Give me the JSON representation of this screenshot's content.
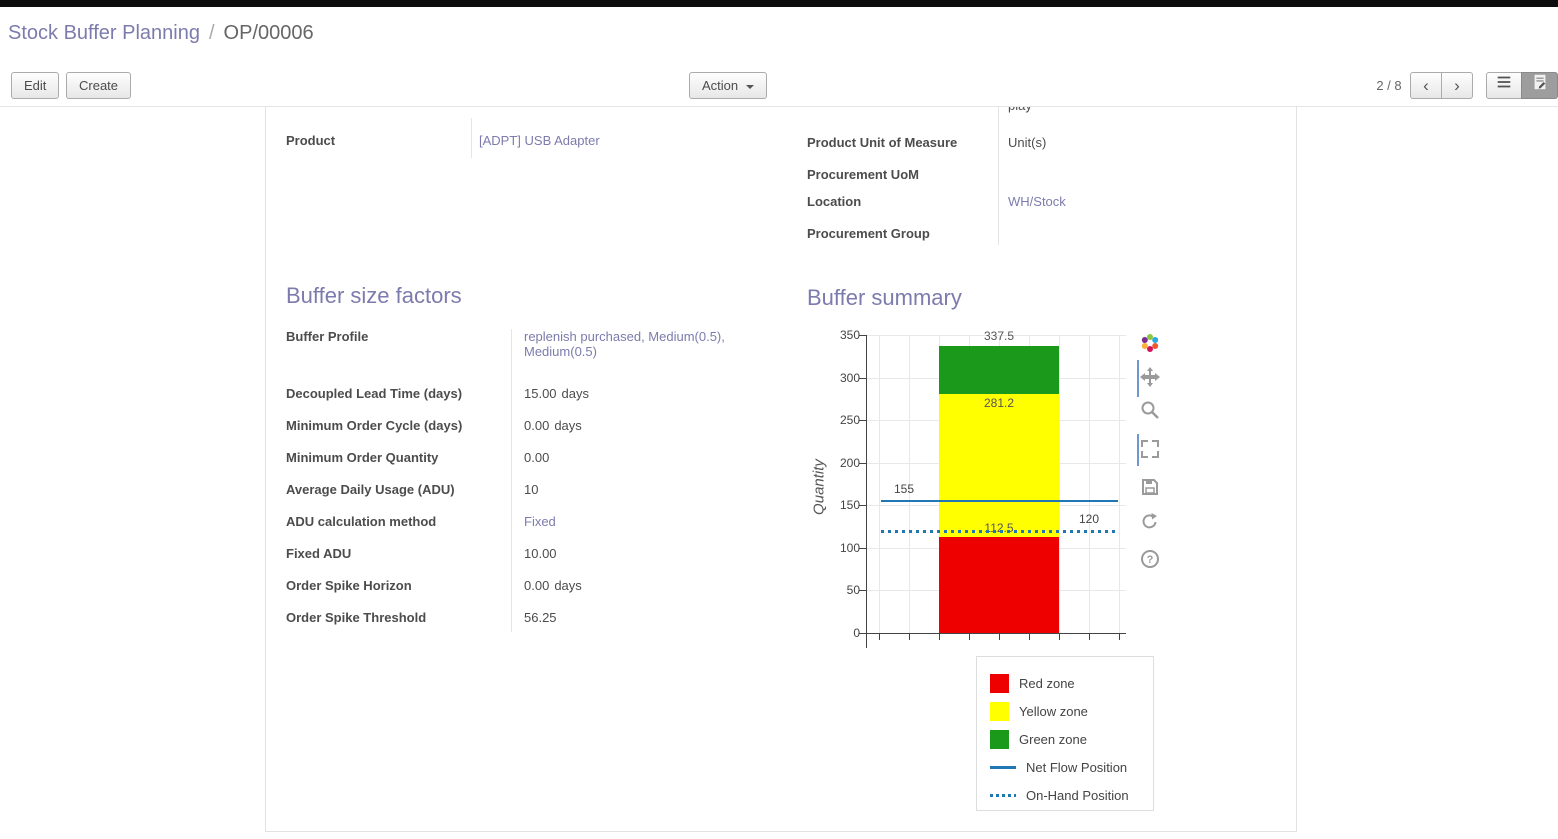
{
  "window": {
    "title_primary": "Stock Buffer Planning",
    "separator": "/",
    "title_secondary": "OP/00006"
  },
  "toolbar": {
    "edit_label": "Edit",
    "create_label": "Create",
    "action_label": "Action",
    "pager": "2 / 8",
    "prev_glyph": "‹",
    "next_glyph": "›"
  },
  "icons": {
    "view_switcher": [
      "list-view",
      "form-view"
    ],
    "modebar": [
      "plotly-logo",
      "pan",
      "zoom",
      "autoscale",
      "save",
      "reset-axes",
      "help"
    ]
  },
  "form": {
    "left": {
      "product_label": "Product",
      "product_value": "[ADPT] USB Adapter"
    },
    "right": {
      "clipped_value": "play",
      "rows": [
        {
          "label": "Product Unit of Measure",
          "value": "Unit(s)"
        },
        {
          "label": "Procurement UoM",
          "value": ""
        },
        {
          "label": "Location",
          "value": "WH/Stock"
        },
        {
          "label": "Procurement Group",
          "value": ""
        }
      ]
    },
    "factors": {
      "title": "Buffer size factors",
      "rows": [
        {
          "label": "Buffer Profile",
          "value": "replenish purchased, Medium(0.5), Medium(0.5)"
        },
        {
          "label": "Decoupled Lead Time (days)",
          "value": "15.00",
          "unit": "days"
        },
        {
          "label": "Minimum Order Cycle (days)",
          "value": "0.00",
          "unit": "days"
        },
        {
          "label": "Minimum Order Quantity",
          "value": "0.00"
        },
        {
          "label": "Average Daily Usage (ADU)",
          "value": "10"
        },
        {
          "label": "ADU calculation method",
          "value": "Fixed"
        },
        {
          "label": "Fixed ADU",
          "value": "10.00"
        },
        {
          "label": "Order Spike Horizon",
          "value": "0.00",
          "unit": "days"
        },
        {
          "label": "Order Spike Threshold",
          "value": "56.25"
        }
      ]
    },
    "summary_title": "Buffer summary"
  },
  "chart_data": {
    "type": "bar",
    "title": "Buffer summary",
    "ylabel": "Quantity",
    "ylim": [
      0,
      350
    ],
    "yticks": [
      0,
      50,
      100,
      150,
      200,
      250,
      300,
      350
    ],
    "x_gridline_count": 9,
    "zones": [
      {
        "name": "Red zone",
        "from": 0,
        "to": 112.5,
        "color": "#ee0000"
      },
      {
        "name": "Yellow zone",
        "from": 112.5,
        "to": 281.2,
        "color": "#ffff00"
      },
      {
        "name": "Green zone",
        "from": 281.2,
        "to": 337.5,
        "color": "#1a991a"
      }
    ],
    "bar_labels": [
      {
        "text": "337.5",
        "value": 337.5
      },
      {
        "text": "281.2",
        "value": 281.2
      },
      {
        "text": "112.5",
        "value": 112.5
      }
    ],
    "lines": [
      {
        "name": "Net Flow Position",
        "value": 155,
        "label": "155",
        "style": "solid",
        "color": "#1f77b4"
      },
      {
        "name": "On-Hand Position",
        "value": 120,
        "label": "120",
        "style": "dotted",
        "color": "#1f77b4"
      }
    ],
    "legend": [
      {
        "label": "Red zone",
        "style": "square",
        "color": "#ee0000"
      },
      {
        "label": "Yellow zone",
        "style": "square",
        "color": "#ffff00"
      },
      {
        "label": "Green zone",
        "style": "square",
        "color": "#1a991a"
      },
      {
        "label": "Net Flow Position",
        "style": "line",
        "color": "#1f77b4"
      },
      {
        "label": "On-Hand Position",
        "style": "dots",
        "color": "#1f77b4"
      }
    ]
  }
}
